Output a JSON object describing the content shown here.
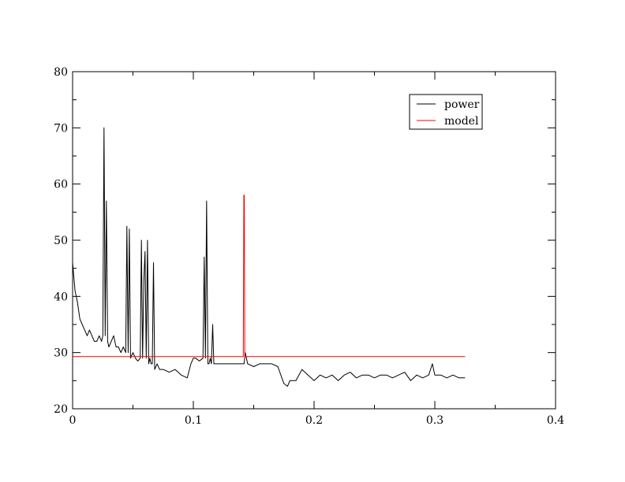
{
  "chart_data": {
    "type": "line",
    "title": "",
    "xlabel": "",
    "ylabel": "",
    "xlim": [
      0,
      0.4
    ],
    "ylim": [
      20,
      80
    ],
    "x_ticks": [
      0,
      0.1,
      0.2,
      0.3,
      0.4
    ],
    "x_tick_labels": [
      "0",
      "0.1",
      "0.2",
      "0.3",
      "0.4"
    ],
    "y_ticks": [
      20,
      30,
      40,
      50,
      60,
      70,
      80
    ],
    "y_tick_labels": [
      "20",
      "30",
      "40",
      "50",
      "60",
      "70",
      "80"
    ],
    "grid": false,
    "legend_position": "top-right",
    "legend": [
      "power",
      "model"
    ],
    "series": [
      {
        "name": "power",
        "color": "#000000",
        "x": [
          0,
          0.002,
          0.004,
          0.006,
          0.008,
          0.01,
          0.012,
          0.014,
          0.016,
          0.018,
          0.02,
          0.022,
          0.024,
          0.025,
          0.026,
          0.027,
          0.028,
          0.029,
          0.03,
          0.032,
          0.034,
          0.036,
          0.038,
          0.04,
          0.042,
          0.044,
          0.045,
          0.046,
          0.047,
          0.048,
          0.05,
          0.052,
          0.054,
          0.056,
          0.057,
          0.058,
          0.059,
          0.06,
          0.061,
          0.062,
          0.063,
          0.064,
          0.065,
          0.066,
          0.067,
          0.068,
          0.07,
          0.072,
          0.075,
          0.08,
          0.085,
          0.09,
          0.095,
          0.098,
          0.1,
          0.102,
          0.105,
          0.108,
          0.109,
          0.11,
          0.111,
          0.112,
          0.113,
          0.114,
          0.115,
          0.116,
          0.117,
          0.118,
          0.12,
          0.125,
          0.13,
          0.135,
          0.14,
          0.142,
          0.143,
          0.145,
          0.15,
          0.155,
          0.16,
          0.165,
          0.17,
          0.175,
          0.178,
          0.18,
          0.185,
          0.19,
          0.195,
          0.2,
          0.205,
          0.21,
          0.215,
          0.22,
          0.225,
          0.23,
          0.235,
          0.24,
          0.245,
          0.25,
          0.255,
          0.26,
          0.265,
          0.27,
          0.275,
          0.28,
          0.285,
          0.29,
          0.295,
          0.298,
          0.3,
          0.305,
          0.31,
          0.315,
          0.32,
          0.325
        ],
        "y": [
          46,
          41,
          39,
          36,
          35,
          34,
          33,
          34,
          33,
          32,
          32,
          33,
          32,
          33,
          70,
          33,
          57,
          32,
          31,
          32,
          33,
          31,
          31,
          30,
          31,
          30,
          52.5,
          30,
          52,
          29,
          30,
          29,
          28.5,
          29,
          50,
          29,
          43,
          48,
          29,
          50,
          28,
          29,
          28,
          28,
          46,
          27,
          28,
          27,
          27,
          26.5,
          27,
          26,
          25.5,
          28,
          29,
          29,
          28.5,
          29,
          47,
          29,
          57,
          28,
          28,
          29,
          28,
          35,
          28,
          28,
          28,
          28,
          28,
          28,
          28,
          28,
          30,
          28,
          27.5,
          28,
          28,
          28,
          27.5,
          24.5,
          24,
          25,
          25,
          27,
          26,
          25,
          26,
          25.5,
          26,
          25,
          26,
          26.5,
          25.5,
          26,
          26,
          25.5,
          26,
          26,
          25.5,
          26,
          26.5,
          25,
          26,
          25.5,
          26,
          28,
          26,
          26,
          25.5,
          26,
          25.5,
          25.5
        ]
      },
      {
        "name": "model",
        "color": "#ff0000",
        "x": [
          0,
          0.141,
          0.1414,
          0.1418,
          0.1422,
          0.1426,
          0.143,
          0.325
        ],
        "y": [
          29.3,
          29.3,
          29.3,
          58,
          58,
          29.3,
          29.3,
          29.3
        ]
      }
    ]
  }
}
